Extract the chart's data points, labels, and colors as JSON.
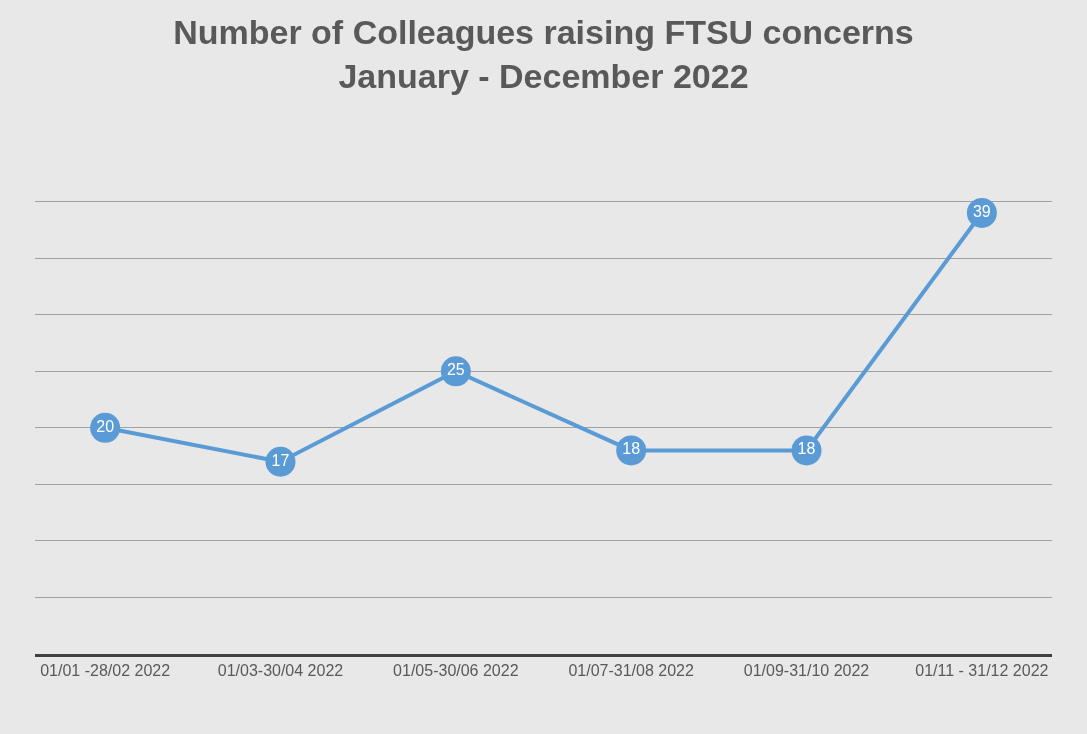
{
  "chart_data": {
    "type": "line",
    "title": "Number of Colleagues raising FTSU concerns\nJanuary - December 2022",
    "categories": [
      "01/01 -28/02 2022",
      "01/03-30/04 2022",
      "01/05-30/06 2022",
      "01/07-31/08 2022",
      "01/09-31/10 2022",
      "01/11 - 31/12 2022"
    ],
    "series": [
      {
        "color": "#5b9bd5",
        "values": [
          20,
          17,
          25,
          18,
          18,
          39
        ]
      }
    ],
    "tick_labels": "x",
    "grid": "y",
    "marker": "circle",
    "line_style": "solid",
    "data_labels": true,
    "legend": false
  }
}
